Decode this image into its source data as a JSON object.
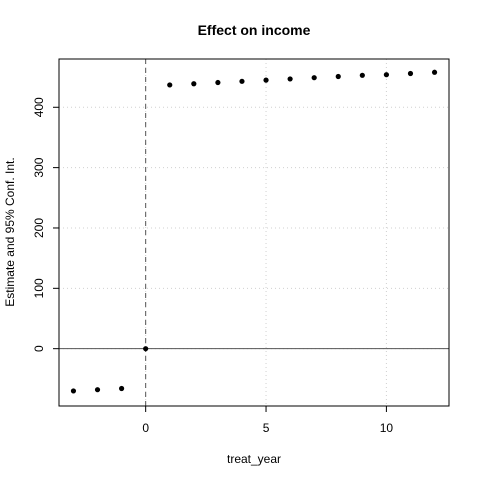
{
  "chart_data": {
    "type": "scatter",
    "title": "Effect on income",
    "xlabel": "treat_year",
    "ylabel": "Estimate and 95% Conf. Int.",
    "xlim": [
      -3.6,
      12.6
    ],
    "ylim": [
      -95,
      480
    ],
    "x_ticks": [
      0,
      5,
      10
    ],
    "y_ticks": [
      0,
      100,
      200,
      300,
      400
    ],
    "grid": true,
    "reference_lines": {
      "horizontal_y": 0,
      "vertical_x": 0
    },
    "marker_color": "#000000",
    "grid_color": "#d0d0d0",
    "points": [
      {
        "x": -3,
        "y": -70
      },
      {
        "x": -2,
        "y": -68
      },
      {
        "x": -1,
        "y": -66
      },
      {
        "x": 0,
        "y": 0
      },
      {
        "x": 1,
        "y": 437
      },
      {
        "x": 2,
        "y": 439
      },
      {
        "x": 3,
        "y": 441
      },
      {
        "x": 4,
        "y": 443
      },
      {
        "x": 5,
        "y": 445
      },
      {
        "x": 6,
        "y": 447
      },
      {
        "x": 7,
        "y": 449
      },
      {
        "x": 8,
        "y": 451
      },
      {
        "x": 9,
        "y": 453
      },
      {
        "x": 10,
        "y": 454
      },
      {
        "x": 11,
        "y": 456
      },
      {
        "x": 12,
        "y": 458
      }
    ]
  }
}
